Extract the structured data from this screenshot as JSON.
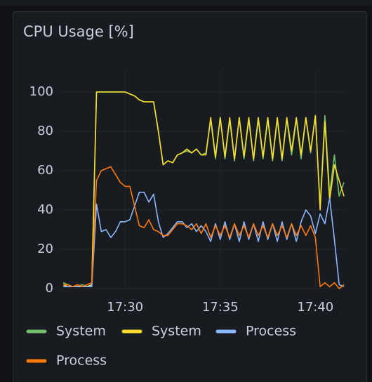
{
  "chart_data": {
    "type": "line",
    "title": "CPU Usage [%]",
    "x": [
      26.75,
      27,
      27.25,
      27.5,
      27.75,
      28,
      28.25,
      28.5,
      28.75,
      29,
      29.25,
      29.5,
      29.75,
      30,
      30.25,
      30.5,
      30.75,
      31,
      31.25,
      31.5,
      31.75,
      32,
      32.25,
      32.5,
      32.75,
      33,
      33.25,
      33.5,
      33.75,
      34,
      34.25,
      34.5,
      34.75,
      35,
      35.25,
      35.5,
      35.75,
      36,
      36.25,
      36.5,
      36.75,
      37,
      37.25,
      37.5,
      37.75,
      38,
      38.25,
      38.5,
      38.75,
      39,
      39.25,
      39.5,
      39.75,
      40,
      40.25,
      40.5,
      40.75,
      41,
      41.25,
      41.5
    ],
    "series": [
      {
        "name": "System",
        "color": "#73bf69",
        "values": [
          3,
          2,
          1,
          1,
          2,
          1,
          2,
          100,
          100,
          100,
          100,
          100,
          100,
          100,
          99,
          98,
          96,
          95,
          95,
          95,
          80,
          63,
          65,
          64,
          68,
          69,
          70,
          69,
          71,
          68,
          69,
          86,
          66,
          87,
          66,
          86,
          65,
          87,
          66,
          86,
          65,
          86,
          66,
          86,
          65,
          86,
          65,
          86,
          68,
          86,
          66,
          87,
          69,
          88,
          42,
          88,
          48,
          68,
          47,
          54
        ]
      },
      {
        "name": "System",
        "color": "#fade2a",
        "values": [
          2,
          1,
          1,
          1,
          1,
          1,
          2,
          100,
          100,
          100,
          100,
          100,
          100,
          100,
          99,
          98,
          96,
          95,
          95,
          95,
          80,
          63,
          65,
          64,
          68,
          69,
          71,
          69,
          71,
          68,
          68,
          87,
          67,
          87,
          67,
          87,
          66,
          87,
          67,
          87,
          66,
          87,
          67,
          87,
          66,
          87,
          66,
          87,
          70,
          87,
          68,
          87,
          70,
          88,
          40,
          85,
          45,
          63,
          55,
          47
        ]
      },
      {
        "name": "Process",
        "color": "#8ab8ff",
        "values": [
          1,
          1,
          1,
          1,
          1,
          1,
          1,
          43,
          29,
          30,
          26,
          29,
          34,
          34,
          35,
          42,
          49,
          49,
          44,
          48,
          34,
          26,
          28,
          31,
          34,
          34,
          31,
          33,
          29,
          32,
          29,
          24,
          33,
          25,
          34,
          25,
          33,
          24,
          34,
          25,
          33,
          24,
          34,
          25,
          33,
          24,
          34,
          25,
          33,
          24,
          34,
          40,
          37,
          28,
          38,
          33,
          46,
          25,
          2,
          1
        ]
      },
      {
        "name": "Process",
        "color": "#ff780a",
        "values": [
          2,
          2,
          1,
          2,
          1,
          2,
          3,
          55,
          60,
          61,
          62,
          58,
          54,
          52,
          52,
          42,
          32,
          31,
          35,
          30,
          29,
          27,
          27,
          30,
          33,
          33,
          32,
          30,
          33,
          28,
          33,
          26,
          32,
          27,
          32,
          26,
          33,
          27,
          32,
          26,
          33,
          27,
          32,
          26,
          33,
          27,
          32,
          26,
          33,
          27,
          32,
          27,
          32,
          26,
          1,
          3,
          1,
          3,
          0,
          2
        ]
      }
    ],
    "xlim": [
      26.6,
      41.5
    ],
    "xticks": [
      {
        "value": 30,
        "label": "17:30"
      },
      {
        "value": 35,
        "label": "17:35"
      },
      {
        "value": 40,
        "label": "17:40"
      }
    ],
    "ylim": [
      0,
      100
    ],
    "yticks": [
      0,
      20,
      40,
      60,
      80,
      100
    ],
    "grid": true,
    "legend": "bottom"
  }
}
